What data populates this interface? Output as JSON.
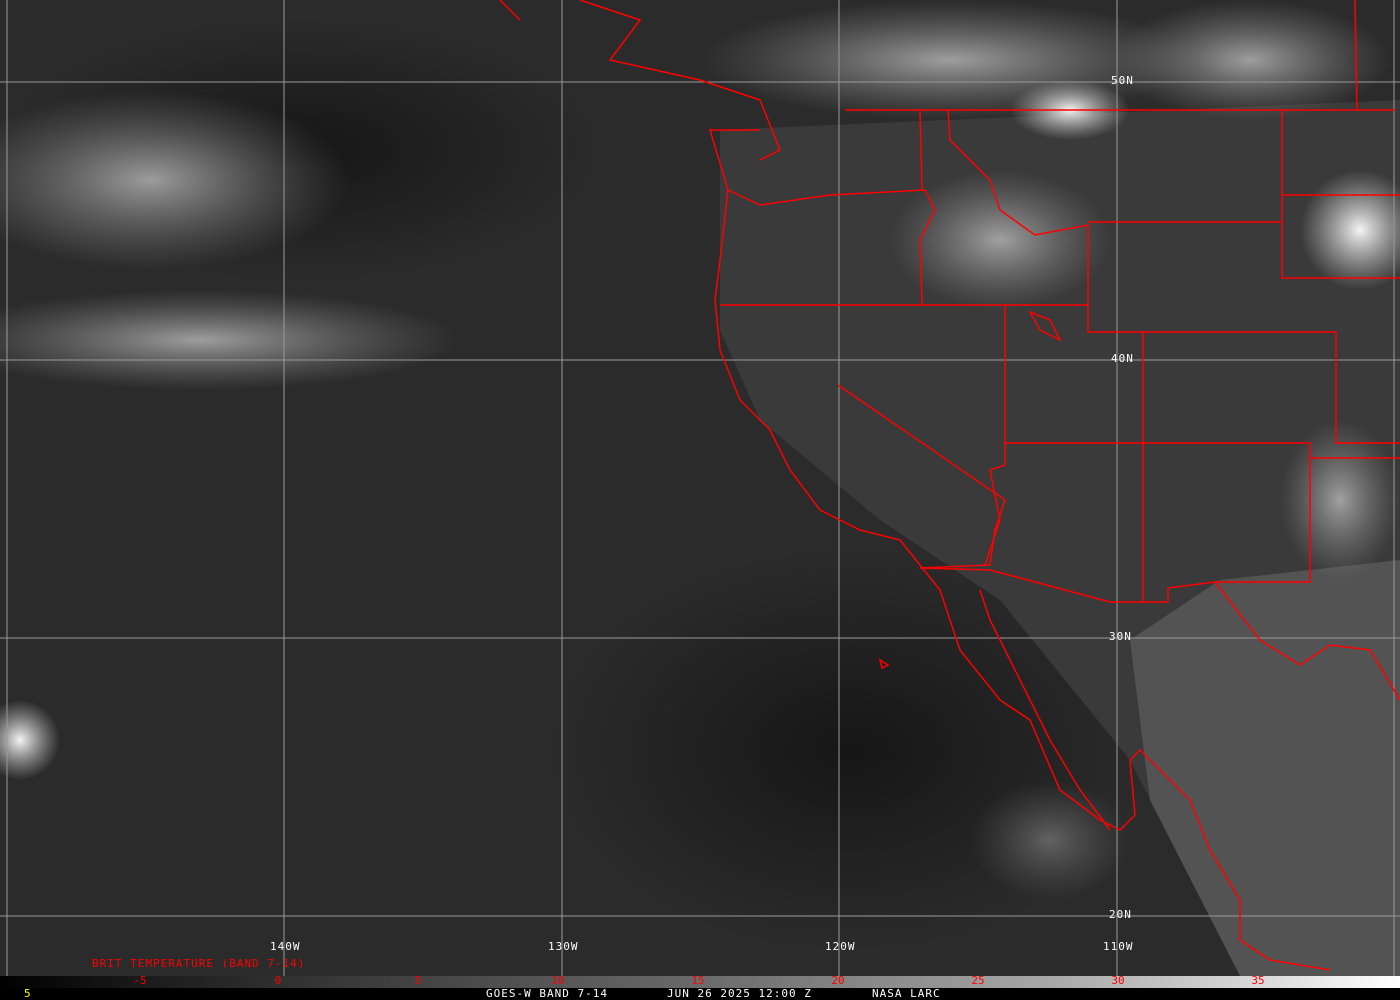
{
  "map": {
    "longitude_labels": [
      "140W",
      "130W",
      "120W",
      "110W"
    ],
    "latitude_labels": [
      "50N",
      "40N",
      "30N",
      "20N"
    ],
    "border_color": "#ff0000",
    "grid_color": "#9a9a9a"
  },
  "legend": {
    "title": "BRIT TEMPERATURE (BAND 7-14)",
    "ticks": [
      "-5",
      "0",
      "5",
      "10",
      "15",
      "20",
      "25",
      "30",
      "35"
    ],
    "left_value": "5"
  },
  "footer": {
    "product": "GOES-W BAND 7-14",
    "datetime": "JUN 26 2025 12:00 Z",
    "source": "NASA LARC"
  }
}
